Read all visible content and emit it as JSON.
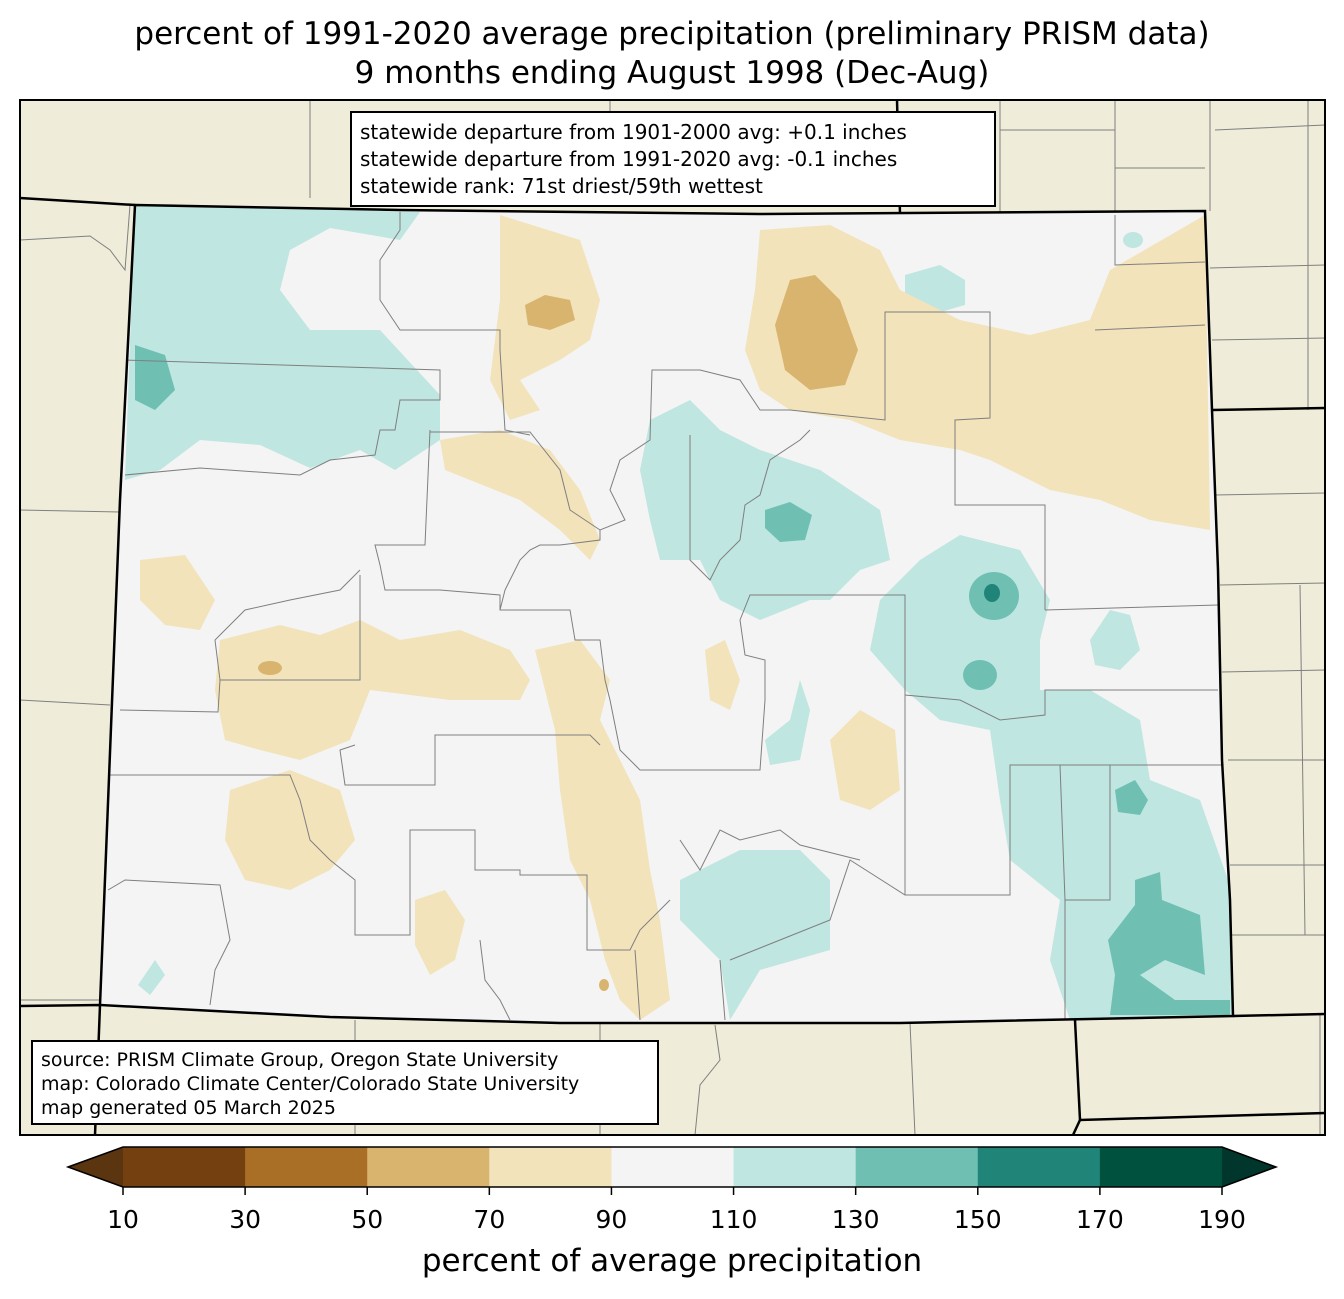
{
  "title": {
    "line1": "percent of 1991-2020 average precipitation (preliminary PRISM data)",
    "line2": "9 months ending August 1998 (Dec-Aug)"
  },
  "stats": {
    "line1": "statewide departure from 1901-2000 avg: +0.1 inches",
    "line2": "statewide departure from 1991-2020 avg: -0.1 inches",
    "line3": "statewide rank: 71st driest/59th wettest"
  },
  "source": {
    "line1": "source: PRISM Climate Group, Oregon State University",
    "line2": "map: Colorado Climate Center/Colorado State University",
    "line3": "map generated 05 March 2025"
  },
  "colorbar": {
    "label": "percent of average precipitation",
    "ticks": [
      "10",
      "30",
      "50",
      "70",
      "90",
      "110",
      "130",
      "150",
      "170",
      "190"
    ],
    "colors": [
      "#5a3510",
      "#744010",
      "#a96f27",
      "#d8b46e",
      "#f2e3bb",
      "#f3f4f3",
      "#bfe6e1",
      "#6fc0b3",
      "#208478",
      "#01513f",
      "#00362b"
    ]
  },
  "map_colors": {
    "background_land": "#efedda",
    "state_outline": "#000000",
    "county_lines": "#7f7f7f"
  }
}
